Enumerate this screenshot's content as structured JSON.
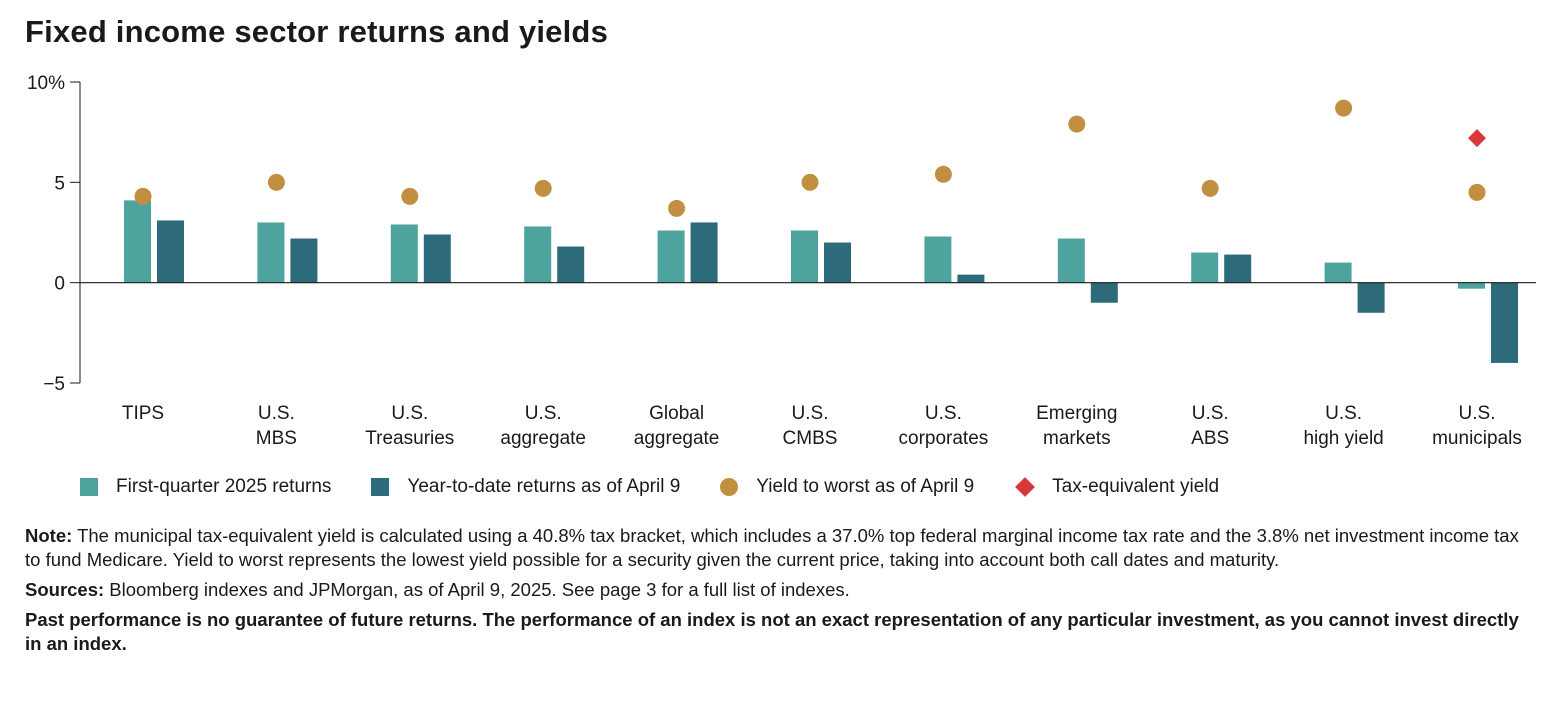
{
  "title": "Fixed income sector returns and yields",
  "colors": {
    "q1": "#4fa39e",
    "ytd": "#2d6a7a",
    "yield": "#c18f3f",
    "tey": "#d9383a",
    "axis": "#1a1a1a"
  },
  "chart_data": {
    "type": "bar",
    "title": "Fixed income sector returns and yields",
    "xlabel": "",
    "ylabel": "",
    "ylim": [
      -5,
      10
    ],
    "yticks": [
      10,
      5,
      0,
      -5
    ],
    "ytick_labels": [
      "10%",
      "5",
      "0",
      "−5"
    ],
    "categories": [
      [
        "TIPS"
      ],
      [
        "U.S.",
        "MBS"
      ],
      [
        "U.S.",
        "Treasuries"
      ],
      [
        "U.S.",
        "aggregate"
      ],
      [
        "Global",
        "aggregate"
      ],
      [
        "U.S.",
        "CMBS"
      ],
      [
        "U.S.",
        "corporates"
      ],
      [
        "Emerging",
        "markets"
      ],
      [
        "U.S.",
        "ABS"
      ],
      [
        "U.S.",
        "high yield"
      ],
      [
        "U.S.",
        "municipals"
      ]
    ],
    "series": [
      {
        "name": "First-quarter 2025 returns",
        "kind": "bar",
        "color": "#4fa39e",
        "values": [
          4.1,
          3.0,
          2.9,
          2.8,
          2.6,
          2.6,
          2.3,
          2.2,
          1.5,
          1.0,
          -0.3
        ]
      },
      {
        "name": "Year-to-date returns as of April 9",
        "kind": "bar",
        "color": "#2d6a7a",
        "values": [
          3.1,
          2.2,
          2.4,
          1.8,
          3.0,
          2.0,
          0.4,
          -1.0,
          1.4,
          -1.5,
          -4.0
        ]
      },
      {
        "name": "Yield to worst as of April 9",
        "kind": "dot",
        "color": "#c18f3f",
        "values": [
          4.3,
          5.0,
          4.3,
          4.7,
          3.7,
          5.0,
          5.4,
          7.9,
          4.7,
          8.7,
          4.5
        ]
      },
      {
        "name": "Tax-equivalent yield",
        "kind": "diamond",
        "color": "#d9383a",
        "values": [
          null,
          null,
          null,
          null,
          null,
          null,
          null,
          null,
          null,
          null,
          7.2
        ]
      }
    ]
  },
  "legend": [
    {
      "label": "First-quarter 2025 returns",
      "shape": "square",
      "color": "#4fa39e"
    },
    {
      "label": "Year-to-date returns as of April 9",
      "shape": "square",
      "color": "#2d6a7a"
    },
    {
      "label": "Yield to worst as of April 9",
      "shape": "circle",
      "color": "#c18f3f"
    },
    {
      "label": "Tax-equivalent yield",
      "shape": "diamond",
      "color": "#d9383a"
    }
  ],
  "notes": {
    "note_label": "Note:",
    "note_text": " The municipal tax-equivalent yield is calculated using a 40.8% tax bracket, which includes a 37.0% top federal marginal income tax rate and the 3.8% net investment income tax to fund Medicare. Yield to worst represents the lowest yield possible for a security given the current price, taking into account both call dates and maturity.",
    "sources_label": "Sources:",
    "sources_text": " Bloomberg indexes and JPMorgan, as of April 9, 2025. See page 3 for a full list of indexes.",
    "disclaimer": "Past performance is no guarantee of future returns. The performance of an index is not an exact representation of any particular investment, as you cannot invest directly in an index."
  }
}
